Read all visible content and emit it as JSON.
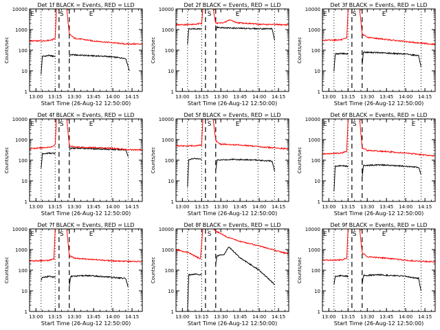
{
  "figure": {
    "common": {
      "xlabel": "Start Time (26-Aug-12 12:50:00)",
      "ylabel": "Counts/sec",
      "y_scale": "log",
      "ylim": [
        1,
        10000
      ],
      "y_ticks": [
        1,
        10,
        100,
        1000,
        10000
      ],
      "y_tick_labels": [
        "1",
        "10",
        "100",
        "1000",
        "10000"
      ],
      "x_range_minutes": [
        "12:55",
        "14:23"
      ],
      "x_tick_labels": [
        "13:00",
        "13:15",
        "13:30",
        "13:45",
        "14:00",
        "14:15"
      ],
      "colors": {
        "events": "#000000",
        "lld": "#ff0000",
        "axes": "#000000"
      }
    }
  },
  "chart_data": [
    {
      "type": "line",
      "title": "Det 1f BLACK = Events, RED = LLD",
      "markers": [
        {
          "label": "E",
          "time": "12:55"
        },
        {
          "label": "S",
          "time": "13:18"
        },
        {
          "label": "E",
          "time": "13:41"
        }
      ],
      "dotted_lines": [
        "13:04",
        "13:15",
        "13:59",
        "14:12"
      ],
      "dashed_lines": [
        "13:18",
        "13:26"
      ],
      "series": [
        {
          "name": "Events",
          "color": "#000000",
          "segments": [
            {
              "x": [
                "13:04",
                "13:05",
                "13:10",
                "13:15"
              ],
              "y": [
                7,
                50,
                55,
                50
              ]
            },
            {
              "x": [
                "13:26",
                "13:27",
                "13:40",
                "13:55",
                "14:10",
                "14:13"
              ],
              "y": [
                50,
                60,
                55,
                50,
                40,
                10
              ]
            }
          ]
        },
        {
          "name": "LLD",
          "color": "#ff0000",
          "segments": [
            {
              "x": [
                "12:55",
                "13:05",
                "13:13",
                "13:15",
                "13:16",
                "13:24",
                "13:26",
                "13:30",
                "13:45",
                "14:00",
                "14:10",
                "14:23"
              ],
              "y": [
                280,
                280,
                320,
                400,
                10000,
                10000,
                600,
                380,
                280,
                230,
                200,
                200
              ]
            }
          ]
        }
      ]
    },
    {
      "type": "line",
      "title": "Det 2f BLACK = Events, RED = LLD",
      "markers": [
        {
          "label": "S",
          "time": "13:19"
        },
        {
          "label": "E",
          "time": "13:41"
        }
      ],
      "dotted_lines": [
        "13:04",
        "13:15",
        "13:59",
        "14:12"
      ],
      "dashed_lines": [
        "13:18",
        "13:26"
      ],
      "series": [
        {
          "name": "Events",
          "color": "#000000",
          "segments": [
            {
              "x": [
                "13:04",
                "13:05",
                "13:15"
              ],
              "y": [
                200,
                1100,
                1100
              ]
            },
            {
              "x": [
                "13:26",
                "13:27",
                "13:35",
                "13:45",
                "14:00",
                "14:10",
                "14:12"
              ],
              "y": [
                900,
                1300,
                1200,
                1150,
                1100,
                1100,
                300
              ]
            }
          ]
        },
        {
          "name": "LLD",
          "color": "#ff0000",
          "segments": [
            {
              "x": [
                "12:55",
                "13:10",
                "13:15",
                "13:16",
                "13:24",
                "13:26",
                "13:33",
                "13:37",
                "13:42",
                "14:00",
                "14:23"
              ],
              "y": [
                1700,
                1800,
                2000,
                10000,
                10000,
                2000,
                2200,
                3000,
                2200,
                1800,
                1700
              ]
            }
          ]
        }
      ]
    },
    {
      "type": "line",
      "title": "Det 3f BLACK = Events, RED = LLD",
      "markers": [
        {
          "label": "E",
          "time": "12:55"
        },
        {
          "label": "S",
          "time": "13:18"
        },
        {
          "label": "E",
          "time": "13:41"
        }
      ],
      "dotted_lines": [
        "13:04",
        "13:15",
        "13:59",
        "14:12"
      ],
      "dashed_lines": [
        "13:18",
        "13:26"
      ],
      "series": [
        {
          "name": "Events",
          "color": "#000000",
          "segments": [
            {
              "x": [
                "13:04",
                "13:05",
                "13:10",
                "13:15"
              ],
              "y": [
                10,
                65,
                70,
                65
              ]
            },
            {
              "x": [
                "13:26",
                "13:27",
                "13:40",
                "14:00",
                "14:10",
                "14:12"
              ],
              "y": [
                20,
                80,
                75,
                65,
                55,
                15
              ]
            }
          ]
        },
        {
          "name": "LLD",
          "color": "#ff0000",
          "segments": [
            {
              "x": [
                "12:55",
                "13:10",
                "13:14",
                "13:15",
                "13:24",
                "13:26",
                "13:30",
                "13:45",
                "14:00",
                "14:23"
              ],
              "y": [
                300,
                320,
                380,
                10000,
                10000,
                600,
                420,
                330,
                260,
                190
              ]
            }
          ]
        }
      ]
    },
    {
      "type": "line",
      "title": "Det 4f BLACK = Events, RED = LLD",
      "markers": [
        {
          "label": "E",
          "time": "12:55"
        },
        {
          "label": "S",
          "time": "13:18"
        },
        {
          "label": "E",
          "time": "13:41"
        }
      ],
      "dotted_lines": [
        "13:04",
        "13:15",
        "13:59",
        "14:12"
      ],
      "dashed_lines": [
        "13:18",
        "13:26"
      ],
      "series": [
        {
          "name": "Events",
          "color": "#000000",
          "segments": [
            {
              "x": [
                "13:04",
                "13:05",
                "13:10",
                "13:15"
              ],
              "y": [
                40,
                200,
                220,
                210
              ]
            },
            {
              "x": [
                "13:26",
                "13:27",
                "13:40",
                "14:00",
                "14:10",
                "14:12"
              ],
              "y": [
                300,
                380,
                370,
                330,
                320,
                150
              ]
            }
          ]
        },
        {
          "name": "LLD",
          "color": "#ff0000",
          "segments": [
            {
              "x": [
                "12:55",
                "13:05",
                "13:13",
                "13:15",
                "13:16",
                "13:24",
                "13:26",
                "13:30",
                "14:00",
                "14:12",
                "14:23"
              ],
              "y": [
                360,
                400,
                450,
                600,
                10000,
                10000,
                500,
                440,
                380,
                320,
                320
              ]
            }
          ]
        }
      ]
    },
    {
      "type": "line",
      "title": "Det 5f BLACK = Events, RED = LLD",
      "markers": [
        {
          "label": "S",
          "time": "13:19"
        },
        {
          "label": "E",
          "time": "13:41"
        }
      ],
      "dotted_lines": [
        "13:04",
        "13:15",
        "13:59",
        "14:12"
      ],
      "dashed_lines": [
        "13:18",
        "13:26"
      ],
      "series": [
        {
          "name": "Events",
          "color": "#000000",
          "segments": [
            {
              "x": [
                "13:04",
                "13:05",
                "13:10",
                "13:15"
              ],
              "y": [
                5,
                110,
                120,
                110
              ]
            },
            {
              "x": [
                "13:26",
                "13:27",
                "13:40",
                "14:00",
                "14:10",
                "14:12"
              ],
              "y": [
                30,
                100,
                110,
                100,
                90,
                30
              ]
            }
          ]
        },
        {
          "name": "LLD",
          "color": "#ff0000",
          "segments": [
            {
              "x": [
                "12:55",
                "13:10",
                "13:15",
                "13:16",
                "13:24",
                "13:26",
                "13:30",
                "13:45",
                "14:00",
                "14:23"
              ],
              "y": [
                500,
                500,
                550,
                10000,
                10000,
                900,
                600,
                550,
                450,
                350
              ]
            }
          ]
        }
      ]
    },
    {
      "type": "line",
      "title": "Det 6f BLACK = Events, RED = LLD",
      "markers": [
        {
          "label": "E",
          "time": "12:55"
        },
        {
          "label": "S",
          "time": "13:18"
        },
        {
          "label": "E",
          "time": "14:04"
        }
      ],
      "dotted_lines": [
        "13:04",
        "13:15",
        "13:59",
        "14:12"
      ],
      "dashed_lines": [
        "13:18",
        "13:26"
      ],
      "series": [
        {
          "name": "Events",
          "color": "#000000",
          "segments": [
            {
              "x": [
                "13:04",
                "13:05",
                "13:10",
                "13:15"
              ],
              "y": [
                3,
                50,
                55,
                50
              ]
            },
            {
              "x": [
                "13:26",
                "13:27",
                "13:40",
                "14:00",
                "14:10",
                "14:12"
              ],
              "y": [
                15,
                55,
                60,
                50,
                45,
                20
              ]
            }
          ]
        },
        {
          "name": "LLD",
          "color": "#ff0000",
          "segments": [
            {
              "x": [
                "12:55",
                "13:10",
                "13:14",
                "13:15",
                "13:24",
                "13:26",
                "13:30",
                "13:45",
                "14:00",
                "14:23"
              ],
              "y": [
                200,
                220,
                280,
                10000,
                10000,
                400,
                300,
                260,
                220,
                160
              ]
            }
          ]
        }
      ]
    },
    {
      "type": "line",
      "title": "Det 7f BLACK = Events, RED = LLD",
      "markers": [
        {
          "label": "E",
          "time": "12:55"
        },
        {
          "label": "S",
          "time": "13:18"
        },
        {
          "label": "E",
          "time": "13:41"
        }
      ],
      "dotted_lines": [
        "13:04",
        "13:15",
        "13:59",
        "14:12"
      ],
      "dashed_lines": [
        "13:18",
        "13:26"
      ],
      "series": [
        {
          "name": "Events",
          "color": "#000000",
          "segments": [
            {
              "x": [
                "13:04",
                "13:05",
                "13:10",
                "13:15"
              ],
              "y": [
                30,
                45,
                50,
                45
              ]
            },
            {
              "x": [
                "13:26",
                "13:27",
                "13:40",
                "14:00",
                "14:10",
                "14:12"
              ],
              "y": [
                15,
                50,
                55,
                45,
                40,
                15
              ]
            }
          ]
        },
        {
          "name": "LLD",
          "color": "#ff0000",
          "segments": [
            {
              "x": [
                "12:55",
                "13:10",
                "13:14",
                "13:15",
                "13:24",
                "13:26",
                "13:30",
                "13:45",
                "14:00",
                "14:23"
              ],
              "y": [
                280,
                300,
                360,
                10000,
                10000,
                500,
                380,
                330,
                280,
                260
              ]
            }
          ]
        }
      ]
    },
    {
      "type": "line",
      "title": "Det 8f BLACK = Events, RED = LLD",
      "markers": [
        {
          "label": "S",
          "time": "13:19"
        }
      ],
      "dotted_lines": [
        "13:04",
        "13:15",
        "13:59",
        "14:12"
      ],
      "dashed_lines": [
        "13:18",
        "13:26"
      ],
      "series": [
        {
          "name": "Events",
          "color": "#000000",
          "segments": [
            {
              "x": [
                "13:04",
                "13:05",
                "13:10",
                "13:15"
              ],
              "y": [
                1,
                60,
                65,
                60
              ]
            },
            {
              "x": [
                "13:26",
                "13:27",
                "13:33",
                "13:36",
                "13:45",
                "14:00",
                "14:12"
              ],
              "y": [
                200,
                500,
                600,
                1400,
                400,
                100,
                20
              ]
            }
          ]
        },
        {
          "name": "LLD",
          "color": "#ff0000",
          "segments": [
            {
              "x": [
                "12:55",
                "13:05",
                "13:14",
                "13:16",
                "13:24",
                "13:26",
                "13:35",
                "13:45",
                "14:00",
                "14:23"
              ],
              "y": [
                1000,
                700,
                350,
                10000,
                10000,
                8000,
                4000,
                2500,
                1500,
                600
              ]
            }
          ]
        }
      ]
    },
    {
      "type": "line",
      "title": "Det 9f BLACK = Events, RED = LLD",
      "markers": [
        {
          "label": "E",
          "time": "12:55"
        },
        {
          "label": "S",
          "time": "13:18"
        },
        {
          "label": "E",
          "time": "13:41"
        }
      ],
      "dotted_lines": [
        "13:04",
        "13:15",
        "13:59",
        "14:12"
      ],
      "dashed_lines": [
        "13:18",
        "13:26"
      ],
      "series": [
        {
          "name": "Events",
          "color": "#000000",
          "segments": [
            {
              "x": [
                "13:04",
                "13:05",
                "13:10",
                "13:15"
              ],
              "y": [
                20,
                50,
                55,
                50
              ]
            },
            {
              "x": [
                "13:26",
                "13:27",
                "13:40",
                "14:00",
                "14:10",
                "14:12"
              ],
              "y": [
                20,
                55,
                60,
                50,
                40,
                10
              ]
            }
          ]
        },
        {
          "name": "LLD",
          "color": "#ff0000",
          "segments": [
            {
              "x": [
                "12:55",
                "13:10",
                "13:14",
                "13:15",
                "13:24",
                "13:26",
                "13:30",
                "13:45",
                "14:00",
                "14:23"
              ],
              "y": [
                300,
                320,
                380,
                10000,
                10000,
                700,
                450,
                380,
                300,
                250
              ]
            }
          ]
        }
      ]
    }
  ]
}
